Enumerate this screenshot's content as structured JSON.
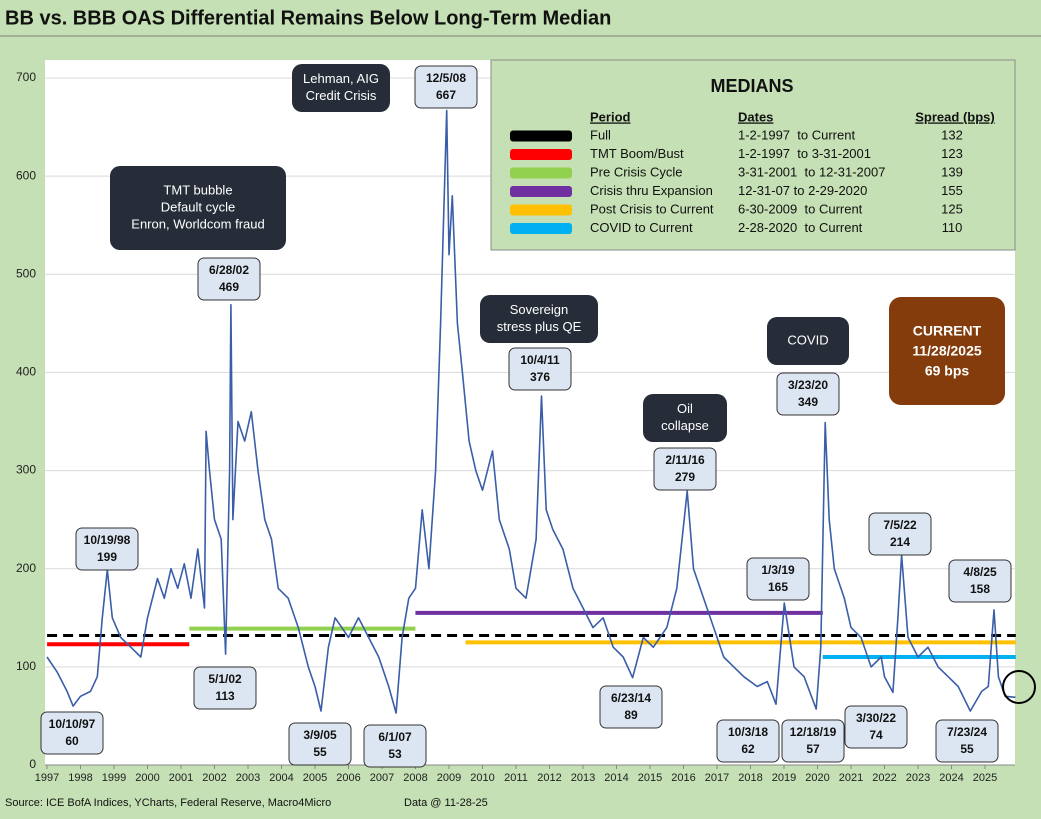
{
  "chart_data": {
    "type": "line",
    "title": "BB vs. BBB OAS Differential Remains Below Long-Term Median",
    "line_color": "#3a5ea8",
    "grid": true,
    "xlim": [
      1997,
      2025.92
    ],
    "xticks": [
      1997,
      1998,
      1999,
      2000,
      2001,
      2002,
      2003,
      2004,
      2005,
      2006,
      2007,
      2008,
      2009,
      2010,
      2011,
      2012,
      2013,
      2014,
      2015,
      2016,
      2017,
      2018,
      2019,
      2020,
      2021,
      2022,
      2023,
      2024,
      2025
    ],
    "ylim": [
      0,
      700
    ],
    "yticks": [
      0,
      100,
      200,
      300,
      400,
      500,
      600,
      700
    ],
    "x": [
      1997.0,
      1997.3,
      1997.6,
      1997.78,
      1998.0,
      1998.3,
      1998.5,
      1998.65,
      1998.8,
      1998.95,
      1999.2,
      1999.5,
      1999.8,
      2000.0,
      2000.3,
      2000.5,
      2000.7,
      2000.9,
      2001.1,
      2001.3,
      2001.5,
      2001.7,
      2001.75,
      2001.85,
      2002.0,
      2002.2,
      2002.33,
      2002.45,
      2002.49,
      2002.55,
      2002.7,
      2002.9,
      2003.1,
      2003.3,
      2003.5,
      2003.7,
      2003.9,
      2004.2,
      2004.5,
      2004.8,
      2005.0,
      2005.18,
      2005.4,
      2005.6,
      2005.8,
      2006.0,
      2006.3,
      2006.6,
      2006.9,
      2007.2,
      2007.42,
      2007.6,
      2007.8,
      2008.0,
      2008.2,
      2008.4,
      2008.6,
      2008.75,
      2008.93,
      2009.0,
      2009.1,
      2009.25,
      2009.4,
      2009.6,
      2009.8,
      2010.0,
      2010.3,
      2010.5,
      2010.8,
      2011.0,
      2011.3,
      2011.6,
      2011.76,
      2011.9,
      2012.1,
      2012.4,
      2012.7,
      2013.0,
      2013.3,
      2013.6,
      2013.9,
      2014.2,
      2014.48,
      2014.8,
      2015.1,
      2015.5,
      2015.8,
      2016.11,
      2016.3,
      2016.6,
      2016.9,
      2017.2,
      2017.5,
      2017.8,
      2018.2,
      2018.5,
      2018.76,
      2019.01,
      2019.3,
      2019.6,
      2019.96,
      2020.1,
      2020.23,
      2020.35,
      2020.5,
      2020.8,
      2021.0,
      2021.3,
      2021.6,
      2021.9,
      2022.0,
      2022.25,
      2022.4,
      2022.51,
      2022.7,
      2023.0,
      2023.3,
      2023.6,
      2023.9,
      2024.2,
      2024.56,
      2024.9,
      2025.1,
      2025.27,
      2025.4,
      2025.6,
      2025.91
    ],
    "values": [
      110,
      95,
      75,
      60,
      70,
      75,
      90,
      150,
      199,
      150,
      130,
      120,
      110,
      150,
      190,
      170,
      200,
      180,
      205,
      170,
      220,
      160,
      340,
      300,
      250,
      230,
      113,
      300,
      469,
      250,
      350,
      330,
      360,
      300,
      250,
      230,
      180,
      170,
      140,
      100,
      80,
      55,
      120,
      150,
      140,
      130,
      150,
      130,
      110,
      80,
      53,
      130,
      170,
      180,
      260,
      200,
      300,
      450,
      667,
      520,
      580,
      450,
      400,
      330,
      300,
      280,
      320,
      250,
      220,
      180,
      170,
      230,
      376,
      260,
      240,
      220,
      180,
      160,
      140,
      150,
      120,
      110,
      89,
      130,
      120,
      140,
      180,
      279,
      200,
      170,
      140,
      110,
      100,
      90,
      80,
      85,
      62,
      165,
      100,
      90,
      57,
      120,
      349,
      250,
      200,
      170,
      140,
      130,
      100,
      110,
      90,
      74,
      150,
      214,
      130,
      110,
      120,
      100,
      90,
      80,
      55,
      75,
      80,
      158,
      90,
      70,
      69
    ],
    "medians": {
      "title": "MEDIANS",
      "headers": [
        "Period",
        "Dates",
        "Spread (bps)"
      ],
      "rows": [
        {
          "period": "Full",
          "dates": "1-2-1997  to Current",
          "spread": 132,
          "color": "#000000",
          "dashed": true
        },
        {
          "period": "TMT Boom/Bust",
          "dates": "1-2-1997  to 3-31-2001",
          "spread": 123,
          "color": "#ff0000",
          "dashed": false
        },
        {
          "period": "Pre Crisis Cycle",
          "dates": "3-31-2001  to 12-31-2007",
          "spread": 139,
          "color": "#92d050",
          "dashed": false
        },
        {
          "period": "Crisis thru Expansion",
          "dates": "12-31-07 to 2-29-2020",
          "spread": 155,
          "color": "#7030a0",
          "dashed": false
        },
        {
          "period": "Post Crisis to Current",
          "dates": "6-30-2009  to Current",
          "spread": 125,
          "color": "#ffc000",
          "dashed": false
        },
        {
          "period": "COVID to Current",
          "dates": "2-28-2020  to Current",
          "spread": 110,
          "color": "#00b0f0",
          "dashed": false
        }
      ]
    },
    "callouts": [
      {
        "label": "10/19/98",
        "value": 199
      },
      {
        "label": "6/28/02",
        "value": 469
      },
      {
        "label": "12/5/08",
        "value": 667
      },
      {
        "label": "10/4/11",
        "value": 376
      },
      {
        "label": "2/11/16",
        "value": 279
      },
      {
        "label": "3/23/20",
        "value": 349
      },
      {
        "label": "1/3/19",
        "value": 165
      },
      {
        "label": "7/5/22",
        "value": 214
      },
      {
        "label": "4/8/25",
        "value": 158
      },
      {
        "label": "10/10/97",
        "value": 60
      },
      {
        "label": "5/1/02",
        "value": 113
      },
      {
        "label": "3/9/05",
        "value": 55
      },
      {
        "label": "6/1/07",
        "value": 53
      },
      {
        "label": "6/23/14",
        "value": 89
      },
      {
        "label": "10/3/18",
        "value": 62
      },
      {
        "label": "12/18/19",
        "value": 57
      },
      {
        "label": "3/30/22",
        "value": 74
      },
      {
        "label": "7/23/24",
        "value": 55
      }
    ],
    "notes": [
      {
        "lines": [
          "Lehman, AIG",
          "Credit Crisis"
        ]
      },
      {
        "lines": [
          "TMT bubble",
          "Default cycle",
          "Enron, Worldcom fraud"
        ]
      },
      {
        "lines": [
          "Sovereign",
          "stress plus QE"
        ]
      },
      {
        "lines": [
          "Oil",
          "collapse"
        ]
      },
      {
        "lines": [
          "COVID"
        ]
      }
    ],
    "current": {
      "lines": [
        "CURRENT",
        "11/28/2025",
        "69 bps"
      ]
    },
    "source": "Source: ICE BofA Indices, YCharts, Federal Reserve, Macro4Micro",
    "data_date": "Data @ 11-28-25"
  }
}
